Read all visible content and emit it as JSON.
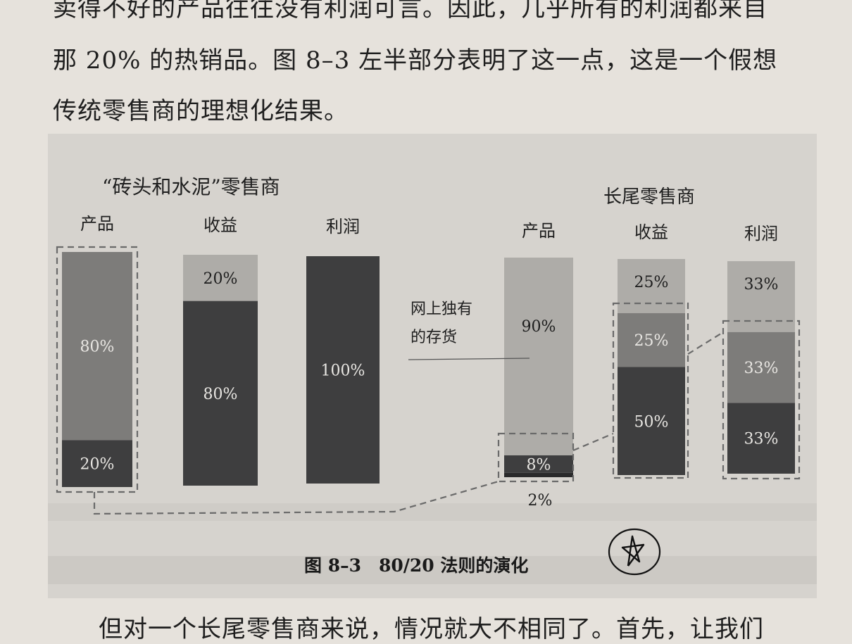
{
  "page_text": {
    "line0": "卖得不好的产品往往没有利润可言。因此，几乎所有的利润都来自",
    "line1": "那 20% 的热销品。图 8–3 左半部分表明了这一点，这是一个假想",
    "line2": "传统零售商的理想化结果。",
    "line3": "但对一个长尾零售商来说，情况就大不相同了。首先，让我们"
  },
  "figure_caption": "图 8–3　80/20 法则的演化",
  "annotation": {
    "label_line1": "网上独有",
    "label_line2": "的存货"
  },
  "colors": {
    "light": "#aeaca8",
    "mid": "#7d7c7a",
    "dark": "#3e3e3f",
    "darkest": "#2a2a2b",
    "dash": "#6a6a6a"
  },
  "chart_data": [
    {
      "type": "bar",
      "stacked": true,
      "title": "“砖头和水泥”零售商",
      "categories": [
        "产品",
        "收益",
        "利润"
      ],
      "series": [
        {
          "values": [
            20,
            80,
            100
          ],
          "labels": [
            "20%",
            "80%",
            "100%"
          ],
          "shade": "dark"
        },
        {
          "values": [
            80,
            20,
            0
          ],
          "labels": [
            "80%",
            "20%",
            ""
          ],
          "shade": "light_mid"
        }
      ]
    },
    {
      "type": "bar",
      "stacked": true,
      "title": "长尾零售商",
      "categories": [
        "产品",
        "收益",
        "利润"
      ],
      "series": [
        {
          "values": [
            2,
            50,
            33
          ],
          "labels": [
            "2%",
            "50%",
            "33%"
          ],
          "shade": "darkest_dark"
        },
        {
          "values": [
            8,
            25,
            33
          ],
          "labels": [
            "8%",
            "25%",
            "33%"
          ],
          "shade": "mid"
        },
        {
          "values": [
            90,
            25,
            33
          ],
          "labels": [
            "90%",
            "25%",
            "33%"
          ],
          "shade": "light"
        }
      ]
    }
  ]
}
